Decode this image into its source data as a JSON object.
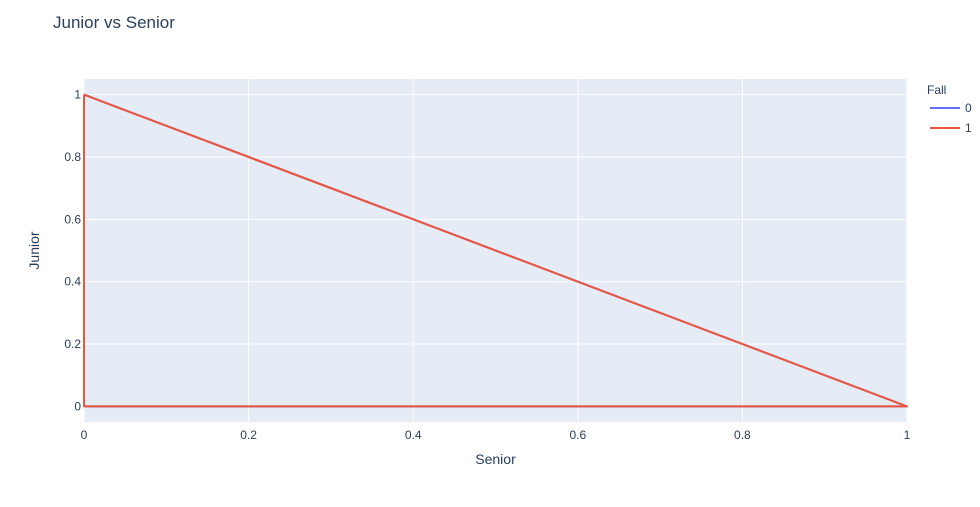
{
  "chart_data": {
    "type": "line",
    "title": "Junior vs Senior",
    "xlabel": "Senior",
    "ylabel": "Junior",
    "xlim": [
      0,
      1
    ],
    "ylim": [
      -0.05,
      1.05
    ],
    "x_ticks": [
      0,
      0.2,
      0.4,
      0.6,
      0.8,
      1
    ],
    "x_tick_labels": [
      "0",
      "0.2",
      "0.4",
      "0.6",
      "0.8",
      "1"
    ],
    "y_ticks": [
      0,
      0.2,
      0.4,
      0.6,
      0.8,
      1
    ],
    "y_tick_labels": [
      "0",
      "0.2",
      "0.4",
      "0.6",
      "0.8",
      "1"
    ],
    "grid": true,
    "legend": {
      "title": "Fall",
      "position": "right"
    },
    "series": [
      {
        "name": "0",
        "color": "#636efa",
        "x": [
          0,
          1,
          0
        ],
        "y": [
          1,
          0,
          0
        ]
      },
      {
        "name": "1",
        "color": "#ef553b",
        "x": [
          0,
          1,
          0,
          0
        ],
        "y": [
          1,
          0,
          0,
          1
        ]
      }
    ]
  },
  "colors": {
    "plot_background": "#e5ecf6",
    "grid": "#ffffff",
    "text": "#2a3f5f"
  }
}
